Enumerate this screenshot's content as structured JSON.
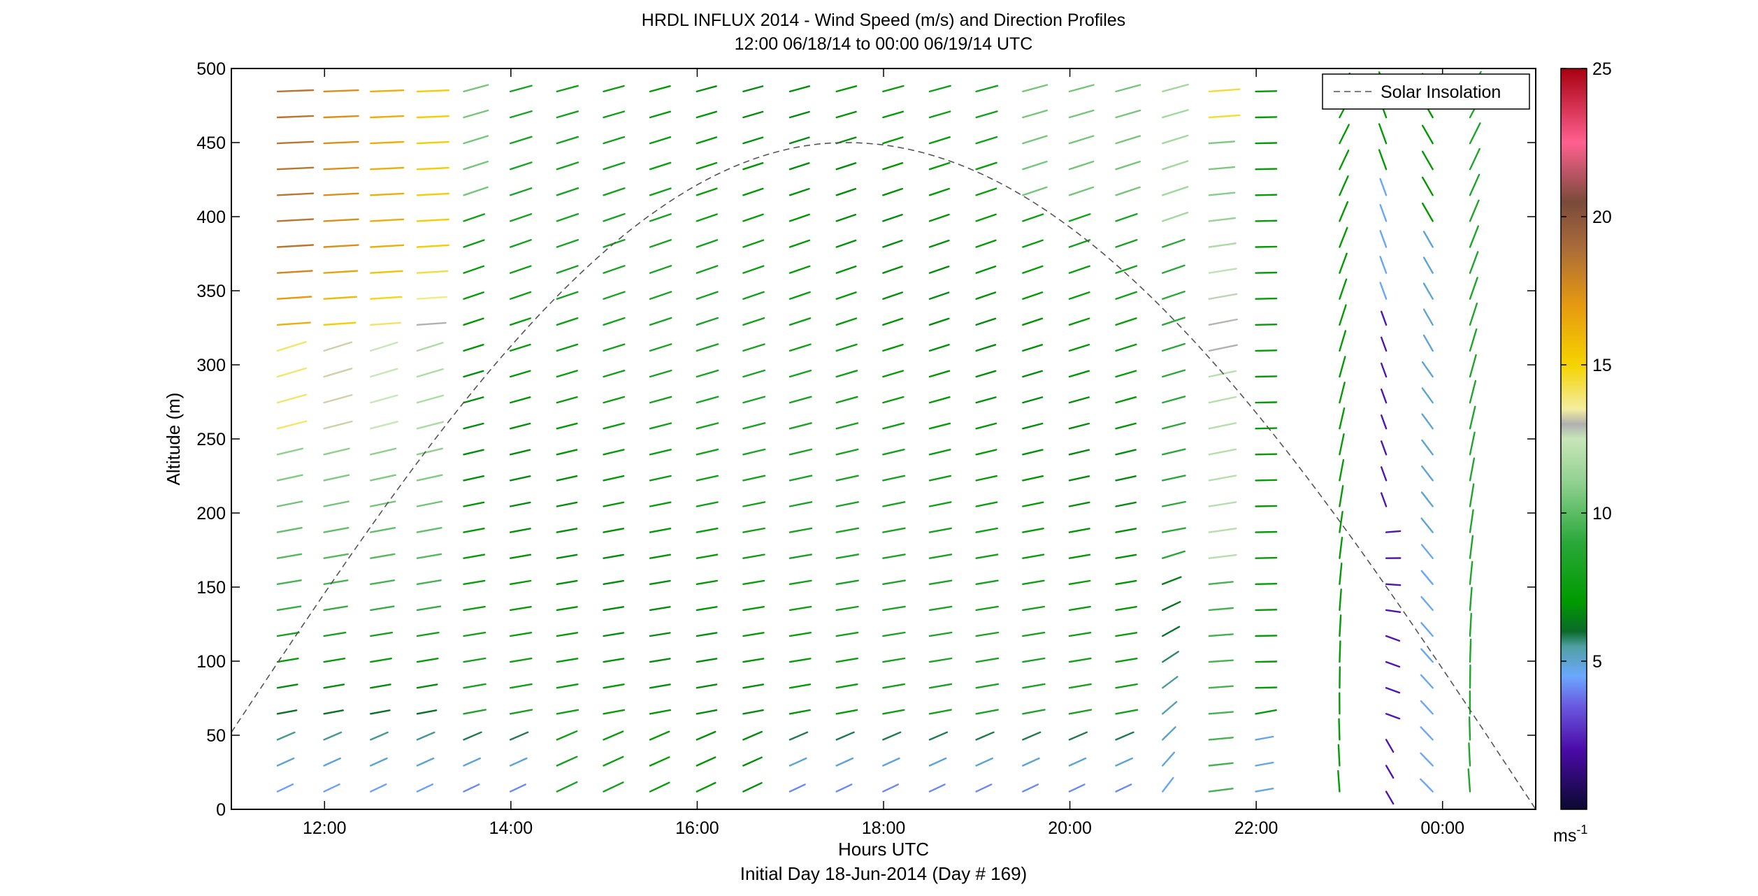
{
  "chart_data": {
    "type": "wind-barb profile (quiver)",
    "title_line1": "HRDL INFLUX 2014 - Wind Speed (m/s) and Direction Profiles",
    "title_line2": "12:00 06/18/14 to 00:00 06/19/14  UTC",
    "xlabel": "Hours UTC",
    "xlabel2": "Initial Day 18-Jun-2014 (Day # 169)",
    "ylabel": "Altitude (m)",
    "xlim_hours": [
      11,
      25
    ],
    "ylim": [
      0,
      500
    ],
    "x_ticks": [
      {
        "value": 12,
        "label": "12:00"
      },
      {
        "value": 14,
        "label": "14:00"
      },
      {
        "value": 16,
        "label": "16:00"
      },
      {
        "value": 18,
        "label": "18:00"
      },
      {
        "value": 20,
        "label": "20:00"
      },
      {
        "value": 22,
        "label": "22:00"
      },
      {
        "value": 24,
        "label": "00:00"
      }
    ],
    "y_ticks": [
      0,
      50,
      100,
      150,
      200,
      250,
      300,
      350,
      400,
      450,
      500
    ],
    "legend": {
      "entry": "Solar Insolation",
      "style": "dashed",
      "color": "#555555",
      "position": "top-right"
    },
    "solar_insolation_curve": {
      "peak_hour": 17.6,
      "peak_altitude_equiv": 450,
      "start_hour": 11,
      "start_value": 52,
      "end_hour": 25,
      "end_value": 0
    },
    "colorbar": {
      "range": [
        0,
        25
      ],
      "ticks": [
        5,
        10,
        15,
        20,
        25
      ],
      "unit_label": "ms",
      "unit_exponent": "-1",
      "stops": [
        {
          "v": 0,
          "c": "#0a0a30"
        },
        {
          "v": 2,
          "c": "#4b0aa8"
        },
        {
          "v": 3.5,
          "c": "#6a5ae0"
        },
        {
          "v": 4.5,
          "c": "#6ba8ff"
        },
        {
          "v": 5.5,
          "c": "#4fa0a0"
        },
        {
          "v": 6,
          "c": "#0a6a2a"
        },
        {
          "v": 7,
          "c": "#009a00"
        },
        {
          "v": 9,
          "c": "#2aa83a"
        },
        {
          "v": 11,
          "c": "#8fd08f"
        },
        {
          "v": 12.5,
          "c": "#c8e6b8"
        },
        {
          "v": 13,
          "c": "#b0b0b0"
        },
        {
          "v": 13.5,
          "c": "#f3eda0"
        },
        {
          "v": 15,
          "c": "#f5d300"
        },
        {
          "v": 17,
          "c": "#e69a10"
        },
        {
          "v": 19,
          "c": "#a86a3a"
        },
        {
          "v": 20.5,
          "c": "#7a4a3a"
        },
        {
          "v": 22.5,
          "c": "#ff6090"
        },
        {
          "v": 25,
          "c": "#a80010"
        }
      ]
    },
    "profiles": [
      {
        "hour": 11.6,
        "top": 490,
        "bottom": 12,
        "regime": "day"
      },
      {
        "hour": 12.1,
        "top": 490,
        "bottom": 12,
        "regime": "day"
      },
      {
        "hour": 12.6,
        "top": 490,
        "bottom": 12,
        "regime": "day"
      },
      {
        "hour": 13.1,
        "top": 490,
        "bottom": 12,
        "regime": "day"
      },
      {
        "hour": 13.6,
        "top": 490,
        "bottom": 12,
        "regime": "day"
      },
      {
        "hour": 14.1,
        "top": 490,
        "bottom": 12,
        "regime": "day"
      },
      {
        "hour": 14.6,
        "top": 490,
        "bottom": 12,
        "regime": "day"
      },
      {
        "hour": 15.1,
        "top": 490,
        "bottom": 12,
        "regime": "day"
      },
      {
        "hour": 15.6,
        "top": 490,
        "bottom": 12,
        "regime": "day"
      },
      {
        "hour": 16.1,
        "top": 490,
        "bottom": 12,
        "regime": "day"
      },
      {
        "hour": 16.6,
        "top": 490,
        "bottom": 12,
        "regime": "day"
      },
      {
        "hour": 17.1,
        "top": 490,
        "bottom": 12,
        "regime": "day"
      },
      {
        "hour": 17.6,
        "top": 490,
        "bottom": 12,
        "regime": "day"
      },
      {
        "hour": 18.1,
        "top": 490,
        "bottom": 12,
        "regime": "day"
      },
      {
        "hour": 18.6,
        "top": 490,
        "bottom": 12,
        "regime": "day"
      },
      {
        "hour": 19.1,
        "top": 490,
        "bottom": 12,
        "regime": "day"
      },
      {
        "hour": 19.6,
        "top": 490,
        "bottom": 12,
        "regime": "day"
      },
      {
        "hour": 20.1,
        "top": 490,
        "bottom": 12,
        "regime": "day"
      },
      {
        "hour": 20.6,
        "top": 490,
        "bottom": 12,
        "regime": "day"
      },
      {
        "hour": 21.1,
        "top": 490,
        "bottom": 12,
        "regime": "day"
      },
      {
        "hour": 21.6,
        "top": 490,
        "bottom": 12,
        "regime": "evening"
      },
      {
        "hour": 22.1,
        "top": 490,
        "bottom": 12,
        "regime": "evening"
      },
      {
        "hour": 23.0,
        "top": 490,
        "bottom": 12,
        "regime": "night-green"
      },
      {
        "hour": 23.5,
        "top": 490,
        "bottom": 12,
        "regime": "night-low"
      },
      {
        "hour": 24.0,
        "top": 490,
        "bottom": 12,
        "regime": "night-blue"
      },
      {
        "hour": 24.4,
        "top": 490,
        "bottom": 12,
        "regime": "night-green"
      }
    ],
    "level_spacing_m": 17.5
  }
}
